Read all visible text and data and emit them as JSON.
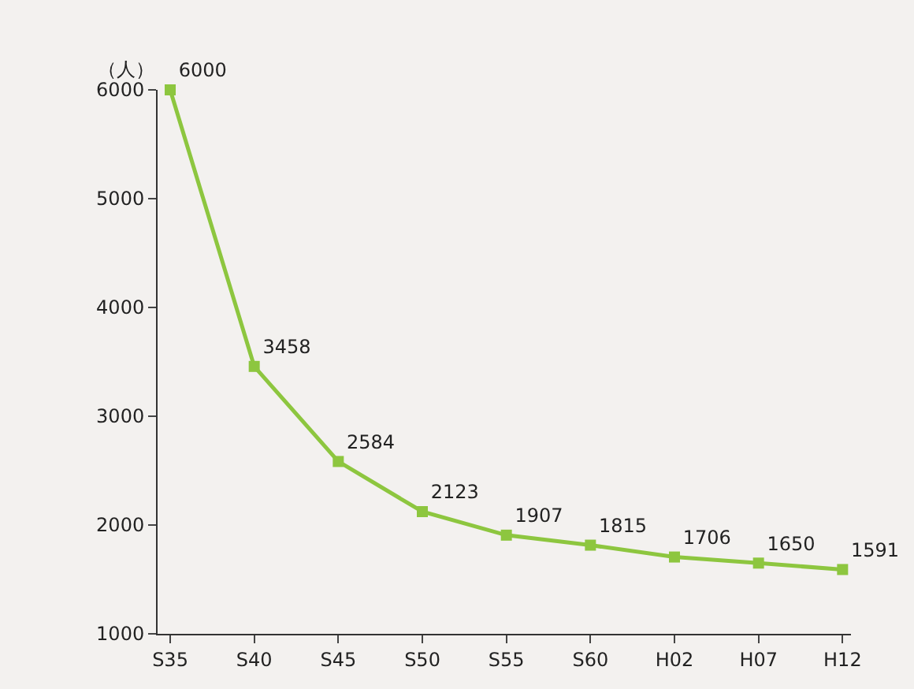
{
  "chart_data": {
    "type": "line",
    "ylabel": "（人）",
    "categories": [
      "S35",
      "S40",
      "S45",
      "S50",
      "S55",
      "S60",
      "H02",
      "H07",
      "H12"
    ],
    "series": [
      {
        "color": "#8dc63f",
        "values": [
          6000,
          3458,
          2584,
          2123,
          1907,
          1815,
          1706,
          1650,
          1591
        ]
      }
    ],
    "ylim": [
      1000,
      6000
    ],
    "yticks": [
      1000,
      2000,
      3000,
      4000,
      5000,
      6000
    ],
    "grid": false,
    "legend": false,
    "marker": "square",
    "line_style": "solid",
    "data_labels": true
  }
}
